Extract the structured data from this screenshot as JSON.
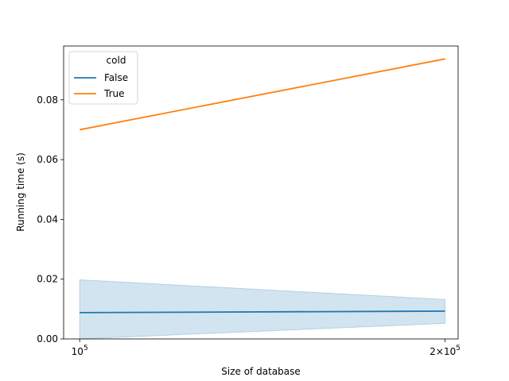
{
  "chart_data": {
    "type": "line",
    "title": "",
    "xlabel": "Size of database",
    "ylabel": "Running time (s)",
    "x_scale": "log",
    "xlim": [
      97000,
      205000
    ],
    "ylim": [
      0.0,
      0.098
    ],
    "x_ticks": [
      {
        "value": 100000,
        "base": "10",
        "exp": "5",
        "prefix": ""
      },
      {
        "value": 200000,
        "base": "10",
        "exp": "5",
        "prefix": "2×"
      }
    ],
    "y_ticks": [
      "0.00",
      "0.02",
      "0.04",
      "0.06",
      "0.08"
    ],
    "grid": false,
    "legend": {
      "title": "cold",
      "placement": "upper-left"
    },
    "series": [
      {
        "name": "False",
        "color": "#1f77b4",
        "x": [
          100000,
          200000
        ],
        "y": [
          0.0088,
          0.0093
        ],
        "ci_low": [
          0.0,
          0.0052
        ],
        "ci_high": [
          0.0198,
          0.0132
        ]
      },
      {
        "name": "True",
        "color": "#ff7f0e",
        "x": [
          100000,
          200000
        ],
        "y": [
          0.07,
          0.0937
        ]
      }
    ]
  }
}
